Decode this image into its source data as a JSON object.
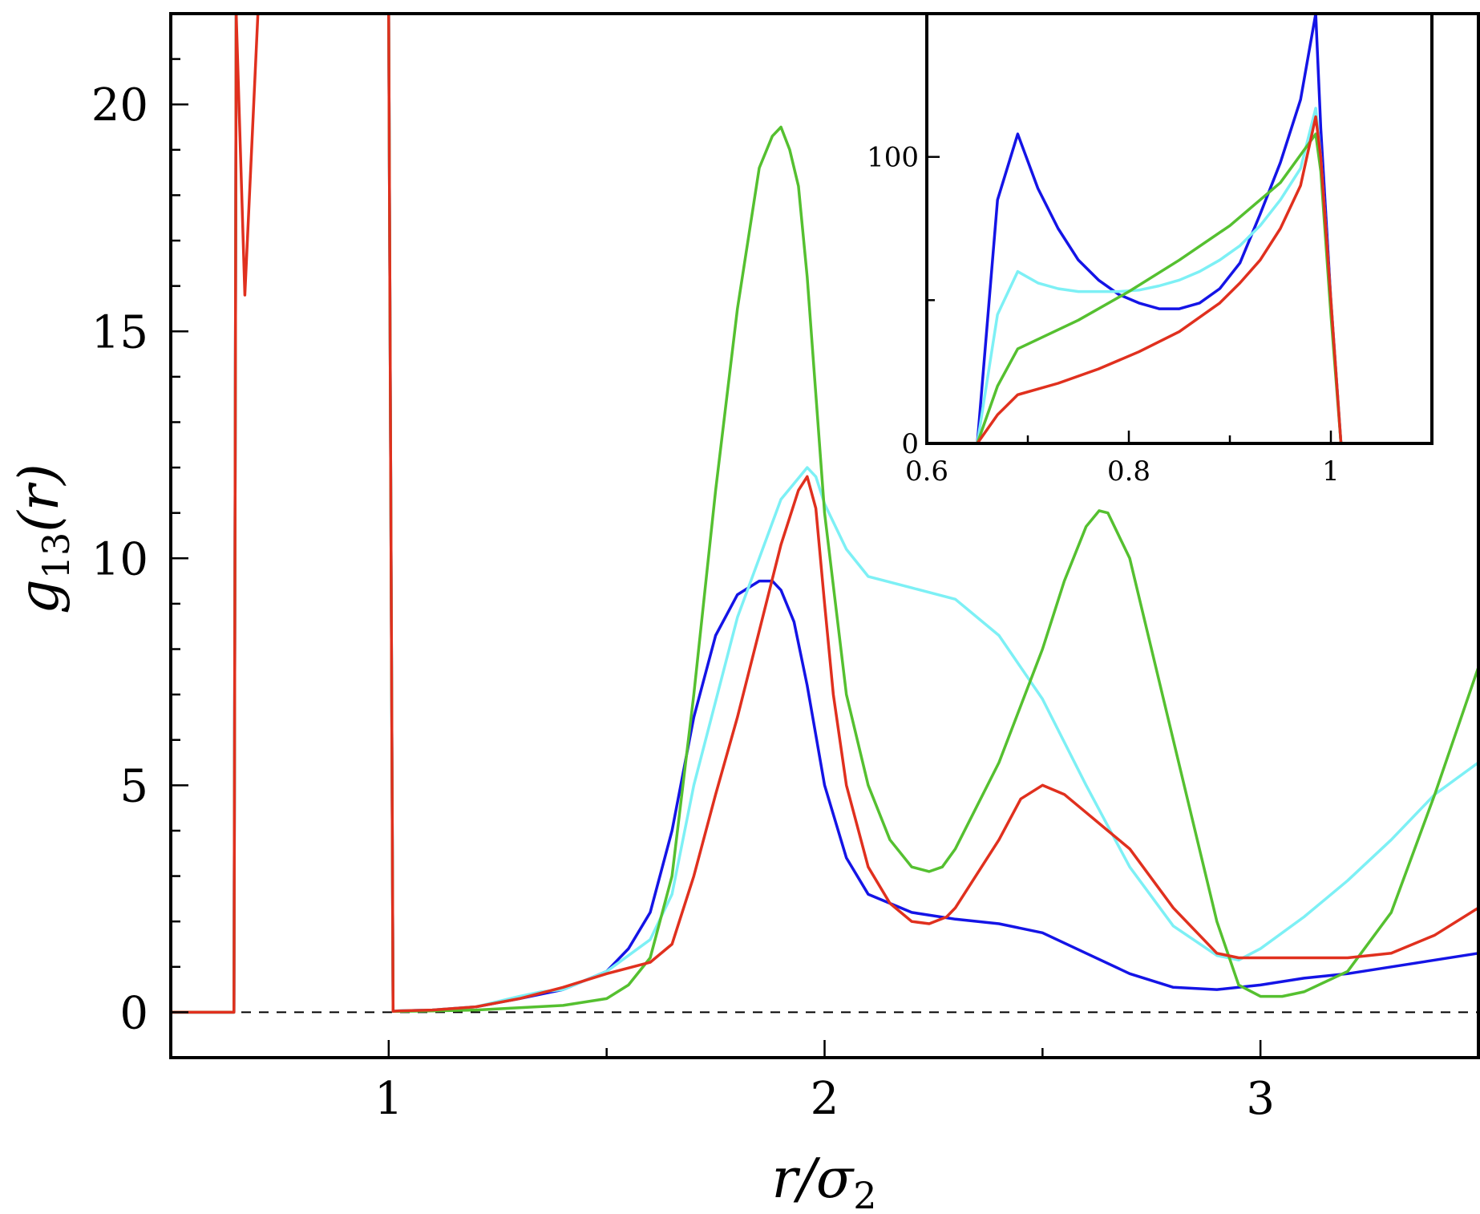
{
  "chart_data": [
    {
      "type": "line",
      "panel": "main",
      "xlabel": "r/σ2",
      "xlabel_parts": {
        "main": "r/σ",
        "sub": "2"
      },
      "ylabel": "g13(r)",
      "ylabel_parts": {
        "g": "g",
        "sub": "13",
        "rest": "(r)"
      },
      "xlim": [
        0.5,
        3.5
      ],
      "ylim": [
        -1,
        22
      ],
      "x_ticks": [
        1,
        2,
        3
      ],
      "x_tick_labels": [
        "1",
        "2",
        "3"
      ],
      "x_minor_step": 0.5,
      "y_ticks": [
        0,
        5,
        10,
        15,
        20
      ],
      "y_tick_labels": [
        "0",
        "5",
        "10",
        "15",
        "20"
      ],
      "y_minor_step": 1,
      "reference_line": {
        "y": 0,
        "style": "dashed"
      },
      "series": [
        {
          "name": "blue",
          "color": "#1414e6",
          "x": [
            0.5,
            0.645,
            0.65,
            0.655,
            1.0,
            1.01,
            1.02,
            1.1,
            1.2,
            1.3,
            1.4,
            1.5,
            1.55,
            1.6,
            1.65,
            1.7,
            1.75,
            1.8,
            1.85,
            1.88,
            1.9,
            1.93,
            1.96,
            2.0,
            2.05,
            2.1,
            2.2,
            2.3,
            2.4,
            2.5,
            2.6,
            2.7,
            2.8,
            2.9,
            3.0,
            3.1,
            3.2,
            3.3,
            3.4,
            3.5
          ],
          "y": [
            0,
            0,
            22,
            22,
            22,
            0.02,
            0.03,
            0.05,
            0.12,
            0.3,
            0.5,
            0.9,
            1.4,
            2.2,
            4.0,
            6.5,
            8.3,
            9.2,
            9.5,
            9.5,
            9.3,
            8.6,
            7.2,
            5.0,
            3.4,
            2.6,
            2.2,
            2.05,
            1.95,
            1.75,
            1.3,
            0.85,
            0.55,
            0.5,
            0.6,
            0.75,
            0.85,
            1.0,
            1.15,
            1.3
          ]
        },
        {
          "name": "cyan",
          "color": "#7df0f5",
          "x": [
            0.5,
            0.645,
            0.65,
            0.66,
            1.0,
            1.01,
            1.02,
            1.1,
            1.2,
            1.3,
            1.35,
            1.4,
            1.5,
            1.6,
            1.65,
            1.7,
            1.8,
            1.9,
            1.96,
            1.98,
            2.0,
            2.05,
            2.1,
            2.2,
            2.3,
            2.4,
            2.5,
            2.6,
            2.7,
            2.8,
            2.9,
            2.95,
            3.0,
            3.1,
            3.2,
            3.3,
            3.4,
            3.5
          ],
          "y": [
            0,
            0,
            22,
            22,
            22,
            0.02,
            0.03,
            0.05,
            0.12,
            0.35,
            0.45,
            0.5,
            0.9,
            1.6,
            2.6,
            5.0,
            8.7,
            11.3,
            12.0,
            11.8,
            11.2,
            10.2,
            9.6,
            9.35,
            9.1,
            8.3,
            6.9,
            5.0,
            3.2,
            1.9,
            1.25,
            1.15,
            1.4,
            2.1,
            2.9,
            3.8,
            4.8,
            5.5
          ]
        },
        {
          "name": "green",
          "color": "#55c030",
          "x": [
            0.5,
            0.645,
            0.65,
            0.67,
            1.0,
            1.01,
            1.02,
            1.1,
            1.2,
            1.3,
            1.4,
            1.5,
            1.55,
            1.6,
            1.65,
            1.7,
            1.75,
            1.8,
            1.85,
            1.88,
            1.9,
            1.92,
            1.94,
            1.96,
            2.0,
            2.05,
            2.1,
            2.15,
            2.2,
            2.24,
            2.27,
            2.3,
            2.4,
            2.5,
            2.55,
            2.6,
            2.63,
            2.65,
            2.7,
            2.8,
            2.9,
            2.95,
            3.0,
            3.05,
            3.1,
            3.2,
            3.3,
            3.4,
            3.5
          ],
          "y": [
            0,
            0,
            22,
            22,
            22,
            0.02,
            0.02,
            0.03,
            0.05,
            0.1,
            0.15,
            0.3,
            0.6,
            1.2,
            3.0,
            7.0,
            11.5,
            15.5,
            18.6,
            19.3,
            19.5,
            19.0,
            18.2,
            16.2,
            11.0,
            7.0,
            5.0,
            3.8,
            3.2,
            3.1,
            3.2,
            3.6,
            5.5,
            8.0,
            9.5,
            10.7,
            11.05,
            11.0,
            10.0,
            6.0,
            2.0,
            0.6,
            0.35,
            0.35,
            0.45,
            0.9,
            2.2,
            4.8,
            7.6
          ]
        },
        {
          "name": "red",
          "color": "#e0301e",
          "x": [
            0.5,
            0.645,
            0.65,
            0.67,
            0.7,
            0.73,
            1.0,
            1.01,
            1.02,
            1.1,
            1.2,
            1.3,
            1.4,
            1.5,
            1.6,
            1.65,
            1.7,
            1.75,
            1.8,
            1.85,
            1.9,
            1.94,
            1.96,
            1.98,
            2.0,
            2.02,
            2.05,
            2.1,
            2.15,
            2.2,
            2.24,
            2.28,
            2.3,
            2.4,
            2.45,
            2.5,
            2.55,
            2.6,
            2.65,
            2.7,
            2.8,
            2.9,
            2.95,
            3.0,
            3.1,
            3.2,
            3.3,
            3.4,
            3.5
          ],
          "y": [
            0,
            0,
            22,
            15.8,
            22,
            22,
            22,
            0.02,
            0.03,
            0.05,
            0.12,
            0.3,
            0.55,
            0.85,
            1.1,
            1.5,
            3.0,
            4.8,
            6.5,
            8.4,
            10.3,
            11.5,
            11.8,
            11.1,
            9.0,
            7.0,
            5.0,
            3.2,
            2.4,
            2.0,
            1.95,
            2.1,
            2.3,
            3.8,
            4.7,
            5.0,
            4.8,
            4.4,
            4.0,
            3.6,
            2.3,
            1.3,
            1.2,
            1.2,
            1.2,
            1.2,
            1.3,
            1.7,
            2.3
          ]
        }
      ]
    },
    {
      "type": "line",
      "panel": "inset",
      "xlim": [
        0.6,
        1.1
      ],
      "ylim": [
        0,
        150
      ],
      "x_ticks": [
        0.6,
        0.8,
        1.0
      ],
      "x_tick_labels": [
        "0.6",
        "0.8",
        "1"
      ],
      "x_minor_step": 0.1,
      "y_ticks": [
        0,
        100
      ],
      "y_tick_labels": [
        "0",
        "100"
      ],
      "y_minor_step": 50,
      "series": [
        {
          "name": "blue",
          "color": "#1414e6",
          "x": [
            0.6,
            0.65,
            0.67,
            0.69,
            0.71,
            0.73,
            0.75,
            0.77,
            0.79,
            0.81,
            0.83,
            0.85,
            0.87,
            0.89,
            0.91,
            0.93,
            0.95,
            0.97,
            0.985,
            0.99,
            1.0,
            1.01,
            1.1
          ],
          "y": [
            0,
            0,
            85,
            108,
            89,
            75,
            64,
            57,
            52,
            49,
            47,
            47,
            49,
            54,
            63,
            80,
            98,
            120,
            150,
            110,
            50,
            0,
            0
          ]
        },
        {
          "name": "cyan",
          "color": "#7df0f5",
          "x": [
            0.6,
            0.65,
            0.67,
            0.69,
            0.71,
            0.73,
            0.75,
            0.77,
            0.79,
            0.81,
            0.83,
            0.85,
            0.87,
            0.89,
            0.91,
            0.93,
            0.95,
            0.97,
            0.985,
            0.99,
            1.0,
            1.01,
            1.1
          ],
          "y": [
            0,
            0,
            45,
            60,
            56,
            54,
            53,
            53,
            53,
            53.5,
            55,
            57,
            60,
            64,
            69,
            76,
            85,
            96,
            117,
            100,
            50,
            0,
            0
          ]
        },
        {
          "name": "green",
          "color": "#55c030",
          "x": [
            0.6,
            0.65,
            0.67,
            0.69,
            0.75,
            0.8,
            0.85,
            0.9,
            0.95,
            0.985,
            0.99,
            1.0,
            1.01,
            1.1
          ],
          "y": [
            0,
            0,
            20,
            33,
            43,
            53,
            64,
            76,
            91,
            108,
            95,
            45,
            0,
            0
          ]
        },
        {
          "name": "red",
          "color": "#e0301e",
          "x": [
            0.6,
            0.65,
            0.67,
            0.69,
            0.73,
            0.77,
            0.81,
            0.85,
            0.89,
            0.91,
            0.93,
            0.95,
            0.97,
            0.985,
            0.99,
            1.0,
            1.01,
            1.1
          ],
          "y": [
            0,
            0,
            10,
            17,
            21,
            26,
            32,
            39,
            49,
            56,
            64,
            75,
            90,
            114,
            100,
            50,
            0,
            0
          ]
        }
      ]
    }
  ]
}
